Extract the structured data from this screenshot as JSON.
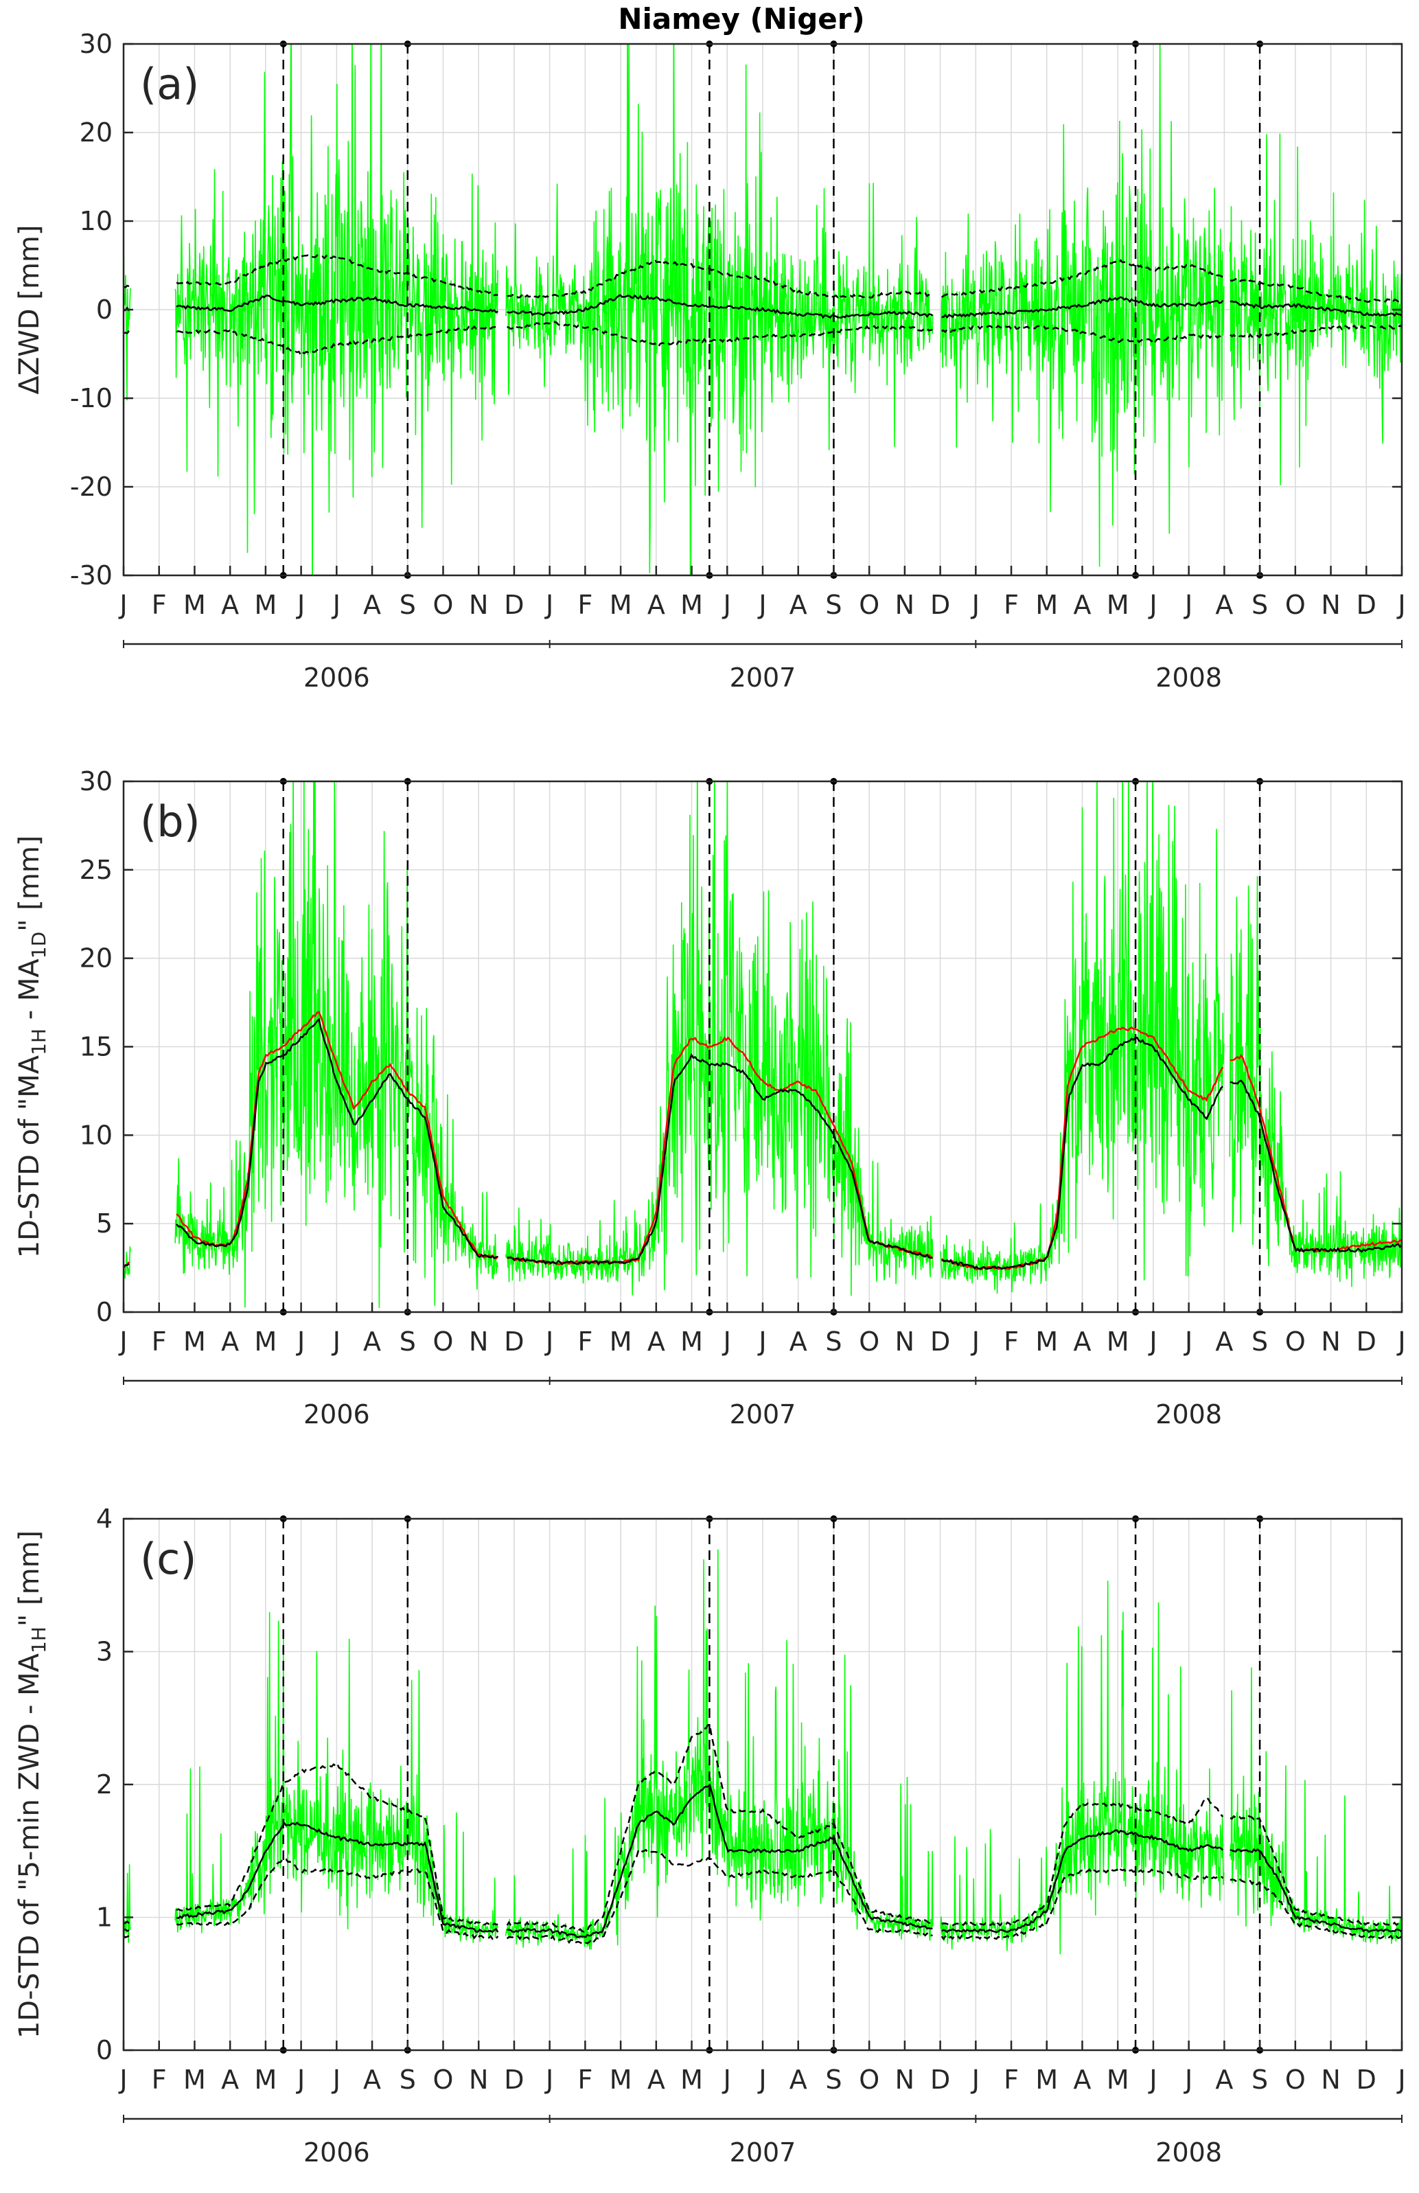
{
  "title": "Niamey (Niger)",
  "colors": {
    "raw": "#00ff00",
    "mean": "#000000",
    "alt": "#ff0000",
    "grid": "#d9d9d9"
  },
  "x_axis": {
    "month_labels": [
      "J",
      "F",
      "M",
      "A",
      "M",
      "J",
      "J",
      "A",
      "S",
      "O",
      "N",
      "D",
      "J",
      "F",
      "M",
      "A",
      "M",
      "J",
      "J",
      "A",
      "S",
      "O",
      "N",
      "D",
      "J",
      "F",
      "M",
      "A",
      "M",
      "J",
      "J",
      "A",
      "S",
      "O",
      "N",
      "D",
      "J"
    ],
    "year_labels": [
      "2006",
      "2007",
      "2008"
    ],
    "xlim": [
      0,
      36
    ],
    "events": [
      4.5,
      8,
      16.5,
      20,
      28.5,
      32
    ]
  },
  "chart_data": [
    {
      "type": "line",
      "panel_label": "(a)",
      "ylabel": "ΔZWD [mm]",
      "ylim": [
        -30,
        30
      ],
      "yticks": [
        "-30",
        "-20",
        "-10",
        "0",
        "10",
        "20",
        "30"
      ],
      "knots_x": [
        0,
        1.5,
        3,
        4,
        5,
        6,
        7,
        8,
        9,
        10,
        11,
        12,
        13,
        14,
        15,
        16,
        17,
        18,
        19,
        20,
        21,
        22,
        23,
        24,
        25,
        26,
        27,
        28,
        29,
        30,
        31,
        32,
        33,
        34,
        35,
        36
      ],
      "mean": [
        0,
        0.3,
        0,
        1.5,
        0.5,
        1,
        1.3,
        0.5,
        0.3,
        0,
        -0.3,
        -0.5,
        0,
        1.5,
        1.3,
        0.5,
        0.3,
        0,
        -0.5,
        -0.8,
        -0.5,
        -0.3,
        -0.8,
        -0.5,
        -0.3,
        0,
        0.5,
        1.3,
        0.5,
        0.5,
        1,
        0.3,
        0.5,
        0,
        -0.5,
        -0.5
      ],
      "upper": [
        2.5,
        3,
        3,
        5,
        6,
        6,
        4.5,
        4,
        3,
        2,
        1.5,
        1.5,
        2,
        4,
        5.5,
        5,
        4,
        3.5,
        2,
        1.5,
        1.5,
        2,
        1.5,
        2,
        2.5,
        3,
        4,
        5.5,
        4.5,
        5,
        3.5,
        3,
        2.5,
        1.5,
        1,
        1
      ],
      "lower": [
        -2.5,
        -2.5,
        -2.5,
        -3.5,
        -5,
        -4,
        -3.5,
        -3,
        -2.5,
        -2,
        -2,
        -1.5,
        -2,
        -3,
        -4,
        -3.5,
        -3.5,
        -3,
        -3,
        -2.5,
        -2,
        -2,
        -2.5,
        -2,
        -2,
        -2,
        -2.5,
        -3.5,
        -3.5,
        -3,
        -3,
        -3,
        -2.5,
        -2,
        -2,
        -2
      ],
      "spread": [
        4,
        5,
        6,
        9,
        12,
        12,
        10,
        8,
        6,
        5,
        4,
        4,
        4,
        9,
        11,
        10,
        9,
        7,
        5,
        4,
        4,
        4,
        4,
        5,
        5,
        6,
        8,
        11,
        9,
        8,
        7,
        6,
        5,
        4,
        4,
        4
      ],
      "gaps": [
        [
          0.2,
          1.45
        ],
        [
          10.55,
          10.75
        ],
        [
          22.8,
          23.0
        ],
        [
          31.0,
          31.15
        ]
      ]
    },
    {
      "type": "line",
      "panel_label": "(b)",
      "ylabel": "1D-STD of \"MA1H - MA1D\" [mm]",
      "ylabel_parts": {
        "pre": "1D-STD of \"MA",
        "sub1": "1H",
        "mid": " - MA",
        "sub2": "1D",
        "post": "\" [mm]"
      },
      "ylim": [
        0,
        30
      ],
      "yticks": [
        "0",
        "5",
        "10",
        "15",
        "20",
        "25",
        "30"
      ],
      "knots_x": [
        0,
        1.5,
        2,
        2.5,
        3,
        3.2,
        3.5,
        3.8,
        4,
        4.5,
        5,
        5.5,
        6,
        6.5,
        7,
        7.5,
        8,
        8.5,
        9,
        10,
        11,
        12,
        13,
        14,
        14.5,
        15,
        15.5,
        16,
        16.5,
        17,
        17.5,
        18,
        18.5,
        19,
        19.5,
        20,
        20.5,
        21,
        22,
        23,
        24,
        25,
        26,
        26.3,
        26.6,
        27,
        27.5,
        28,
        28.5,
        29,
        30,
        30.5,
        31,
        31.5,
        32,
        32.5,
        33,
        34,
        35,
        36
      ],
      "mean": [
        2.5,
        5,
        4,
        3.8,
        3.8,
        4.5,
        7,
        13,
        14,
        14.5,
        15.5,
        16.5,
        13,
        10.5,
        12,
        13.5,
        12,
        11,
        6,
        3.2,
        3,
        2.8,
        2.8,
        2.8,
        3,
        5,
        13,
        14.5,
        14,
        14,
        13.5,
        12,
        12.5,
        12.5,
        11.5,
        10,
        8,
        4,
        3.5,
        3,
        2.5,
        2.5,
        3,
        5,
        12,
        14,
        14,
        15,
        15.5,
        15,
        12,
        11,
        13,
        13,
        11,
        7,
        3.5,
        3.5,
        3.5,
        3.8
      ],
      "alt": [
        2.5,
        5.5,
        4.2,
        3.8,
        3.8,
        4.8,
        7.5,
        13.5,
        14.5,
        15,
        16,
        17,
        14,
        11.5,
        13,
        14,
        12.5,
        11.5,
        6.5,
        3.2,
        3,
        2.8,
        2.8,
        2.8,
        3,
        5.5,
        14,
        15.5,
        15,
        15.5,
        14.5,
        13,
        12.5,
        13,
        12.5,
        10.5,
        8.5,
        4,
        3.5,
        3,
        2.5,
        2.5,
        3,
        5.5,
        13,
        15,
        15.5,
        16,
        16,
        15.5,
        12.5,
        12,
        14,
        14.5,
        11.5,
        7.5,
        3.5,
        3.5,
        3.8,
        4
      ],
      "gaps": [
        [
          0.2,
          1.45
        ],
        [
          10.55,
          10.75
        ],
        [
          22.8,
          23.0
        ],
        [
          31.0,
          31.15
        ]
      ]
    },
    {
      "type": "line",
      "panel_label": "(c)",
      "ylabel": "1D-STD of \"5-min ZWD - MA1H\" [mm]",
      "ylabel_parts": {
        "pre": "1D-STD of \"5-min ZWD - MA",
        "sub1": "1H",
        "mid": "",
        "sub2": "",
        "post": "\" [mm]"
      },
      "ylim": [
        0,
        4
      ],
      "yticks": [
        "0",
        "1",
        "2",
        "3",
        "4"
      ],
      "knots_x": [
        0,
        1.5,
        3,
        3.5,
        4,
        4.5,
        5,
        6,
        7,
        8,
        8.5,
        9,
        10,
        11,
        12,
        13,
        13.5,
        14,
        14.5,
        15,
        15.5,
        16,
        16.5,
        17,
        18,
        19,
        20,
        20.5,
        21,
        22,
        23,
        24,
        25,
        25.5,
        26,
        26.5,
        27,
        28,
        29,
        30,
        30.5,
        31,
        32,
        32.5,
        33,
        34,
        35,
        36
      ],
      "mean": [
        0.9,
        1,
        1.05,
        1.2,
        1.5,
        1.7,
        1.7,
        1.6,
        1.55,
        1.55,
        1.55,
        0.95,
        0.9,
        0.9,
        0.9,
        0.85,
        0.9,
        1.3,
        1.7,
        1.8,
        1.7,
        1.9,
        2,
        1.5,
        1.5,
        1.5,
        1.6,
        1.3,
        1,
        0.95,
        0.9,
        0.9,
        0.9,
        0.95,
        1.05,
        1.5,
        1.6,
        1.65,
        1.6,
        1.5,
        1.55,
        1.5,
        1.5,
        1.3,
        1,
        0.95,
        0.9,
        0.9
      ],
      "upper": [
        0.95,
        1.05,
        1.1,
        1.35,
        1.7,
        2,
        2.1,
        2.15,
        1.9,
        1.8,
        1.75,
        1,
        0.95,
        0.95,
        0.95,
        0.9,
        1,
        1.5,
        2,
        2.1,
        2,
        2.35,
        2.45,
        1.8,
        1.8,
        1.6,
        1.7,
        1.4,
        1.05,
        1,
        0.95,
        0.95,
        0.95,
        1,
        1.1,
        1.7,
        1.85,
        1.85,
        1.8,
        1.7,
        1.9,
        1.75,
        1.75,
        1.4,
        1.05,
        1,
        0.95,
        0.95
      ],
      "lower": [
        0.85,
        0.95,
        0.95,
        1.05,
        1.3,
        1.45,
        1.35,
        1.35,
        1.3,
        1.35,
        1.35,
        0.9,
        0.85,
        0.85,
        0.85,
        0.8,
        0.85,
        1.15,
        1.5,
        1.5,
        1.4,
        1.4,
        1.45,
        1.3,
        1.35,
        1.3,
        1.35,
        1.15,
        0.9,
        0.9,
        0.85,
        0.85,
        0.85,
        0.9,
        0.95,
        1.3,
        1.35,
        1.35,
        1.35,
        1.3,
        1.3,
        1.3,
        1.25,
        1.15,
        0.95,
        0.9,
        0.85,
        0.85
      ],
      "gaps": [
        [
          0.2,
          1.45
        ],
        [
          10.55,
          10.75
        ],
        [
          22.8,
          23.0
        ],
        [
          31.0,
          31.15
        ]
      ]
    }
  ]
}
